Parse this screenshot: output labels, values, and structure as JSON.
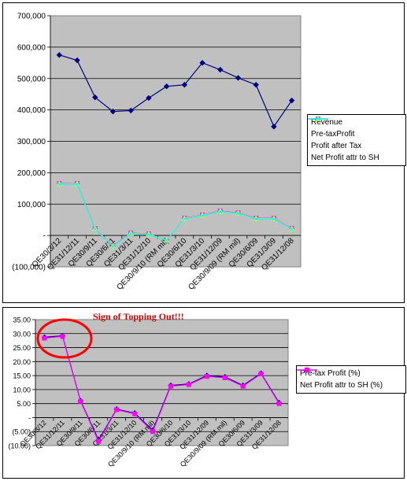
{
  "chart_data": [
    {
      "type": "line",
      "title": "",
      "xlabel": "",
      "ylabel": "",
      "categories": [
        "QE30/3/12",
        "QE31/12/11",
        "QE30/9/11",
        "QE30/6/11",
        "QE31/3/11",
        "QE31/12/10",
        "QE30/9/10 (RM mil)",
        "QE30/6/10",
        "QE31/3/10",
        "QE31/12/09",
        "QE30/9/09 (RM mil)",
        "QE30/6/09",
        "QE31/3/09",
        "QE31/12/08"
      ],
      "ylim": [
        -100000,
        700000
      ],
      "yticks": [
        "(100,000)",
        "-",
        "100,000",
        "200,000",
        "300,000",
        "400,000",
        "500,000",
        "600,000",
        "700,000"
      ],
      "grid": true,
      "legend_position": "right",
      "series": [
        {
          "name": "Revenue",
          "color": "#000080",
          "marker": "diamond",
          "values": [
            575000,
            558000,
            440000,
            395000,
            398000,
            438000,
            475000,
            480000,
            550000,
            528000,
            502000,
            480000,
            347000,
            430000
          ]
        },
        {
          "name": "Pre-taxProfit",
          "color": "#ff00ff",
          "marker": "square",
          "values": [
            165000,
            165000,
            22000,
            -33000,
            8000,
            5000,
            -15000,
            55000,
            65000,
            78000,
            72000,
            55000,
            55000,
            22000
          ]
        },
        {
          "name": "Profit after Tax",
          "color": "#ffff00",
          "marker": "triangle",
          "values": [
            164000,
            164000,
            21000,
            -34000,
            7000,
            4000,
            -15000,
            54000,
            64000,
            77000,
            71000,
            54000,
            54000,
            21000
          ]
        },
        {
          "name": "Net Profit attr to SH",
          "color": "#00ffff",
          "marker": "x",
          "values": [
            163000,
            163000,
            20000,
            -35000,
            6000,
            3000,
            -16000,
            53000,
            63000,
            76000,
            70000,
            53000,
            53000,
            20000
          ]
        }
      ]
    },
    {
      "type": "line",
      "title": "",
      "xlabel": "",
      "ylabel": "",
      "categories": [
        "QE30/3/12",
        "QE31/12/11",
        "QE30/9/11",
        "QE30/6/11",
        "QE31/3/11",
        "QE31/12/10",
        "QE30/9/10 (RM mil)",
        "QE30/6/10",
        "QE31/3/10",
        "QE31/12/09",
        "QE30/9/09 (RM mil)",
        "QE30/6/09",
        "QE31/3/09",
        "QE31/12/08"
      ],
      "ylim": [
        -10,
        35
      ],
      "yticks": [
        "(10.00)",
        "(5.00)",
        "-",
        "5.00",
        "10.00",
        "15.00",
        "20.00",
        "25.00",
        "30.00",
        "35.00"
      ],
      "grid": true,
      "legend_position": "right",
      "annotation": "Sign of Topping Out!!!",
      "series": [
        {
          "name": "Pre-tax Profit (%)",
          "color": "#000080",
          "marker": "diamond",
          "values": [
            28.7,
            29.2,
            6.0,
            -8.0,
            3.0,
            1.6,
            -4.5,
            11.5,
            12.0,
            15.0,
            14.5,
            11.5,
            15.8,
            5.3
          ]
        },
        {
          "name": "Net Profit attr to SH (%)",
          "color": "#ff00ff",
          "marker": "square",
          "values": [
            28.4,
            29.0,
            5.8,
            -8.5,
            2.8,
            1.3,
            -5.0,
            11.2,
            11.8,
            14.7,
            14.2,
            11.2,
            15.6,
            5.0
          ]
        }
      ]
    }
  ]
}
